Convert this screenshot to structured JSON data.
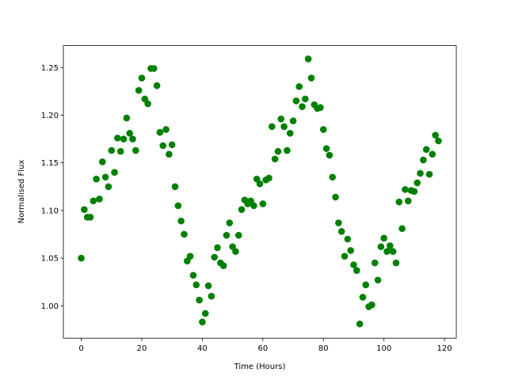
{
  "chart_data": {
    "type": "scatter",
    "xlabel": "Time (Hours)",
    "ylabel": "Normalised Flux",
    "color": "#008000",
    "x": [
      0,
      1,
      2,
      3,
      4,
      5,
      6,
      7,
      8,
      9,
      10,
      11,
      12,
      13,
      14,
      15,
      16,
      17,
      18,
      19,
      20,
      21,
      22,
      23,
      24,
      25,
      26,
      27,
      28,
      29,
      30,
      31,
      32,
      33,
      34,
      35,
      36,
      37,
      38,
      39,
      40,
      41,
      42,
      43,
      44,
      45,
      46,
      47,
      48,
      49,
      50,
      51,
      52,
      53,
      54,
      55,
      56,
      57,
      58,
      59,
      60,
      61,
      62,
      63,
      64,
      65,
      66,
      67,
      68,
      69,
      70,
      71,
      72,
      73,
      74,
      75,
      76,
      77,
      78,
      79,
      80,
      81,
      82,
      83,
      84,
      85,
      86,
      87,
      88,
      89,
      90,
      91,
      92,
      93,
      94,
      95,
      96,
      97,
      98,
      99,
      100,
      101,
      102,
      103,
      104,
      105,
      106,
      107,
      108,
      109,
      110,
      111,
      112,
      113,
      114,
      115,
      116,
      117,
      118
    ],
    "values": [
      1.05,
      1.101,
      1.093,
      1.093,
      1.11,
      1.133,
      1.112,
      1.151,
      1.135,
      1.125,
      1.163,
      1.14,
      1.176,
      1.162,
      1.175,
      1.197,
      1.181,
      1.175,
      1.163,
      1.226,
      1.239,
      1.217,
      1.212,
      1.249,
      1.249,
      1.231,
      1.182,
      1.168,
      1.185,
      1.159,
      1.169,
      1.125,
      1.105,
      1.089,
      1.075,
      1.047,
      1.052,
      1.032,
      1.022,
      1.006,
      0.983,
      0.992,
      1.021,
      1.01,
      1.051,
      1.061,
      1.045,
      1.042,
      1.074,
      1.087,
      1.062,
      1.057,
      1.074,
      1.101,
      1.111,
      1.107,
      1.11,
      1.105,
      1.133,
      1.128,
      1.107,
      1.132,
      1.134,
      1.188,
      1.154,
      1.162,
      1.196,
      1.188,
      1.163,
      1.181,
      1.194,
      1.215,
      1.23,
      1.209,
      1.217,
      1.259,
      1.239,
      1.211,
      1.207,
      1.208,
      1.185,
      1.165,
      1.158,
      1.135,
      1.114,
      1.087,
      1.078,
      1.052,
      1.07,
      1.058,
      1.043,
      1.037,
      0.981,
      1.009,
      1.022,
      0.999,
      1.001,
      1.045,
      1.027,
      1.062,
      1.071,
      1.057,
      1.063,
      1.057,
      1.045,
      1.109,
      1.081,
      1.122,
      1.11,
      1.121,
      1.12,
      1.129,
      1.139,
      1.153,
      1.164,
      1.138,
      1.159,
      1.179,
      1.173
    ],
    "xlim": [
      -5.9,
      123.9
    ],
    "ylim": [
      0.966,
      1.273
    ],
    "xticks": [
      0,
      20,
      40,
      60,
      80,
      100,
      120
    ],
    "yticks": [
      {
        "value": 1.0,
        "label": "1.00"
      },
      1.05,
      {
        "value": 1.1,
        "label": "1.10"
      },
      1.15,
      {
        "value": 1.2,
        "label": "1.20"
      },
      1.25
    ]
  }
}
